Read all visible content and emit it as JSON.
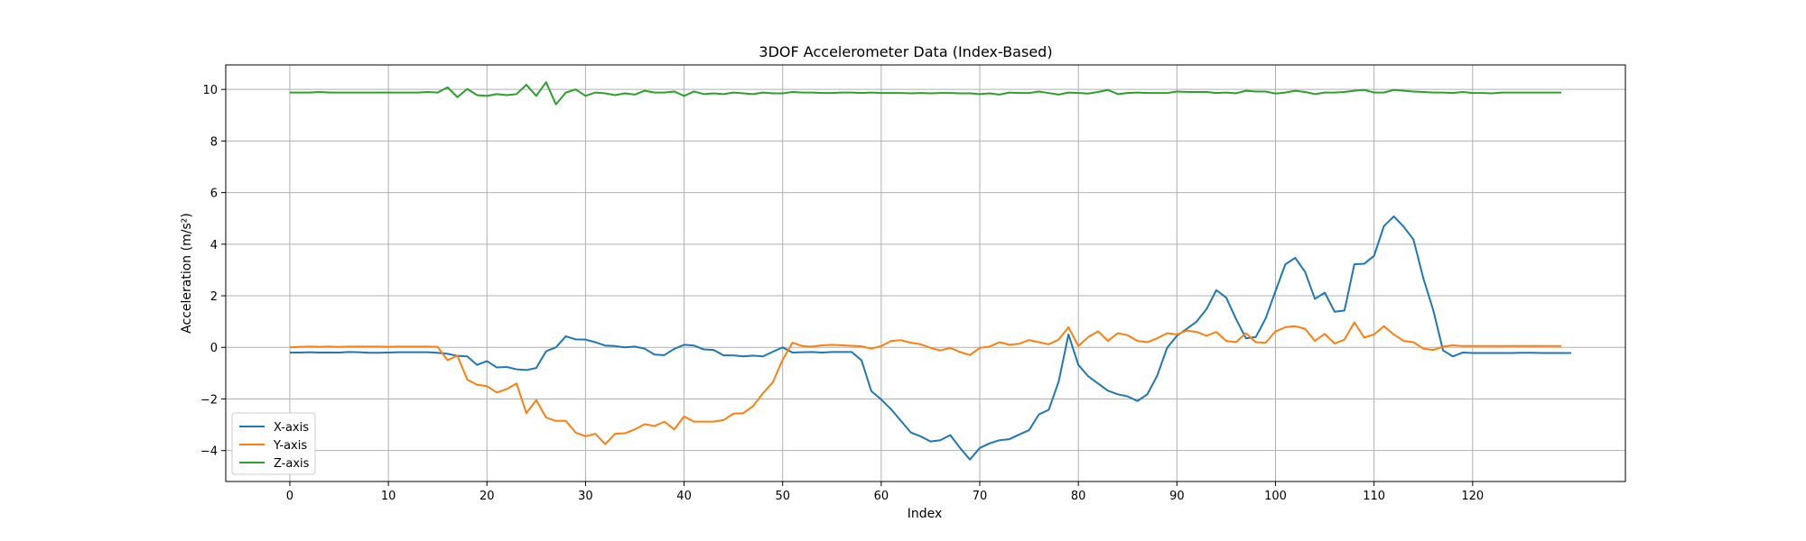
{
  "chart_data": {
    "type": "line",
    "title": "3DOF Accelerometer Data (Index-Based)",
    "xlabel": "Index",
    "ylabel": "Acceleration (m/s²)",
    "xlim": [
      -6.5,
      135.5
    ],
    "ylim": [
      -5.2,
      10.95
    ],
    "xticks": [
      0,
      10,
      20,
      30,
      40,
      50,
      60,
      70,
      80,
      90,
      100,
      110,
      120
    ],
    "yticks": [
      -4,
      -2,
      0,
      2,
      4,
      6,
      8,
      10
    ],
    "grid": true,
    "legend_position": "lower-left",
    "series": [
      {
        "name": "X-axis",
        "color": "#1f77b4",
        "values": [
          -0.2,
          -0.2,
          -0.19,
          -0.2,
          -0.2,
          -0.2,
          -0.18,
          -0.19,
          -0.21,
          -0.21,
          -0.2,
          -0.19,
          -0.19,
          -0.19,
          -0.19,
          -0.21,
          -0.25,
          -0.33,
          -0.35,
          -0.68,
          -0.53,
          -0.78,
          -0.76,
          -0.85,
          -0.88,
          -0.8,
          -0.15,
          0.0,
          0.43,
          0.31,
          0.3,
          0.2,
          0.07,
          0.05,
          0.0,
          0.03,
          -0.05,
          -0.28,
          -0.3,
          -0.06,
          0.1,
          0.07,
          -0.08,
          -0.1,
          -0.31,
          -0.31,
          -0.35,
          -0.32,
          -0.35,
          -0.17,
          -0.0,
          -0.2,
          -0.19,
          -0.18,
          -0.2,
          -0.18,
          -0.18,
          -0.18,
          -0.5,
          -1.7,
          -2.02,
          -2.4,
          -2.85,
          -3.3,
          -3.45,
          -3.65,
          -3.6,
          -3.4,
          -3.9,
          -4.35,
          -3.9,
          -3.72,
          -3.6,
          -3.56,
          -3.38,
          -3.21,
          -2.6,
          -2.42,
          -1.33,
          0.5,
          -0.68,
          -1.12,
          -1.4,
          -1.68,
          -1.82,
          -1.9,
          -2.08,
          -1.82,
          -1.1,
          -0.02,
          0.45,
          0.72,
          1.0,
          1.48,
          2.22,
          1.93,
          1.1,
          0.35,
          0.4,
          1.12,
          2.18,
          3.22,
          3.47,
          2.93,
          1.88,
          2.12,
          1.38,
          1.43,
          3.22,
          3.24,
          3.55,
          4.7,
          5.08,
          4.68,
          4.18,
          2.68,
          1.45,
          -0.12,
          -0.35,
          -0.2,
          -0.22,
          -0.22,
          -0.22,
          -0.22,
          -0.22,
          -0.21,
          -0.21,
          -0.22,
          -0.22,
          -0.22,
          -0.22
        ]
      },
      {
        "name": "Y-axis",
        "color": "#ff7f0e",
        "values": [
          0.0,
          0.02,
          0.03,
          0.02,
          0.03,
          0.02,
          0.03,
          0.03,
          0.03,
          0.03,
          0.02,
          0.03,
          0.03,
          0.03,
          0.03,
          0.02,
          -0.5,
          -0.32,
          -1.25,
          -1.45,
          -1.5,
          -1.75,
          -1.62,
          -1.4,
          -2.55,
          -2.05,
          -2.72,
          -2.85,
          -2.85,
          -3.3,
          -3.45,
          -3.35,
          -3.75,
          -3.35,
          -3.33,
          -3.18,
          -2.98,
          -3.05,
          -2.88,
          -3.18,
          -2.68,
          -2.88,
          -2.88,
          -2.88,
          -2.82,
          -2.57,
          -2.55,
          -2.28,
          -1.78,
          -1.35,
          -0.48,
          0.18,
          0.05,
          0.03,
          0.08,
          0.1,
          0.08,
          0.06,
          0.04,
          -0.05,
          0.05,
          0.25,
          0.28,
          0.18,
          0.12,
          -0.02,
          -0.12,
          -0.02,
          -0.18,
          -0.3,
          -0.02,
          0.03,
          0.2,
          0.1,
          0.14,
          0.28,
          0.2,
          0.12,
          0.3,
          0.78,
          0.05,
          0.4,
          0.62,
          0.25,
          0.55,
          0.47,
          0.25,
          0.2,
          0.35,
          0.55,
          0.5,
          0.65,
          0.6,
          0.45,
          0.6,
          0.25,
          0.2,
          0.55,
          0.2,
          0.18,
          0.62,
          0.78,
          0.82,
          0.72,
          0.25,
          0.52,
          0.15,
          0.3,
          0.97,
          0.38,
          0.5,
          0.82,
          0.5,
          0.25,
          0.2,
          -0.05,
          -0.1,
          0.03,
          0.08,
          0.05,
          0.05,
          0.05,
          0.05,
          0.05,
          0.05,
          0.05,
          0.05,
          0.05,
          0.05,
          0.05
        ]
      },
      {
        "name": "Z-axis",
        "color": "#2ca02c",
        "values": [
          9.88,
          9.88,
          9.88,
          9.9,
          9.88,
          9.88,
          9.88,
          9.88,
          9.88,
          9.88,
          9.88,
          9.88,
          9.88,
          9.88,
          9.9,
          9.88,
          10.08,
          9.7,
          10.02,
          9.78,
          9.75,
          9.82,
          9.78,
          9.82,
          10.18,
          9.75,
          10.28,
          9.42,
          9.88,
          10.0,
          9.75,
          9.88,
          9.85,
          9.78,
          9.85,
          9.8,
          9.95,
          9.88,
          9.88,
          9.92,
          9.75,
          9.92,
          9.82,
          9.85,
          9.82,
          9.88,
          9.85,
          9.82,
          9.88,
          9.85,
          9.85,
          9.9,
          9.88,
          9.88,
          9.86,
          9.86,
          9.88,
          9.88,
          9.86,
          9.88,
          9.86,
          9.86,
          9.86,
          9.85,
          9.86,
          9.85,
          9.86,
          9.86,
          9.85,
          9.85,
          9.82,
          9.85,
          9.8,
          9.88,
          9.86,
          9.86,
          9.92,
          9.86,
          9.8,
          9.88,
          9.86,
          9.84,
          9.9,
          9.98,
          9.82,
          9.86,
          9.88,
          9.86,
          9.86,
          9.86,
          9.92,
          9.9,
          9.9,
          9.9,
          9.86,
          9.88,
          9.85,
          9.95,
          9.92,
          9.92,
          9.84,
          9.88,
          9.95,
          9.9,
          9.82,
          9.88,
          9.88,
          9.9,
          9.95,
          9.98,
          9.88,
          9.88,
          9.98,
          9.95,
          9.92,
          9.9,
          9.88,
          9.88,
          9.86,
          9.9,
          9.86,
          9.86,
          9.85,
          9.88,
          9.88,
          9.88,
          9.88,
          9.88,
          9.88,
          9.88
        ]
      }
    ]
  }
}
